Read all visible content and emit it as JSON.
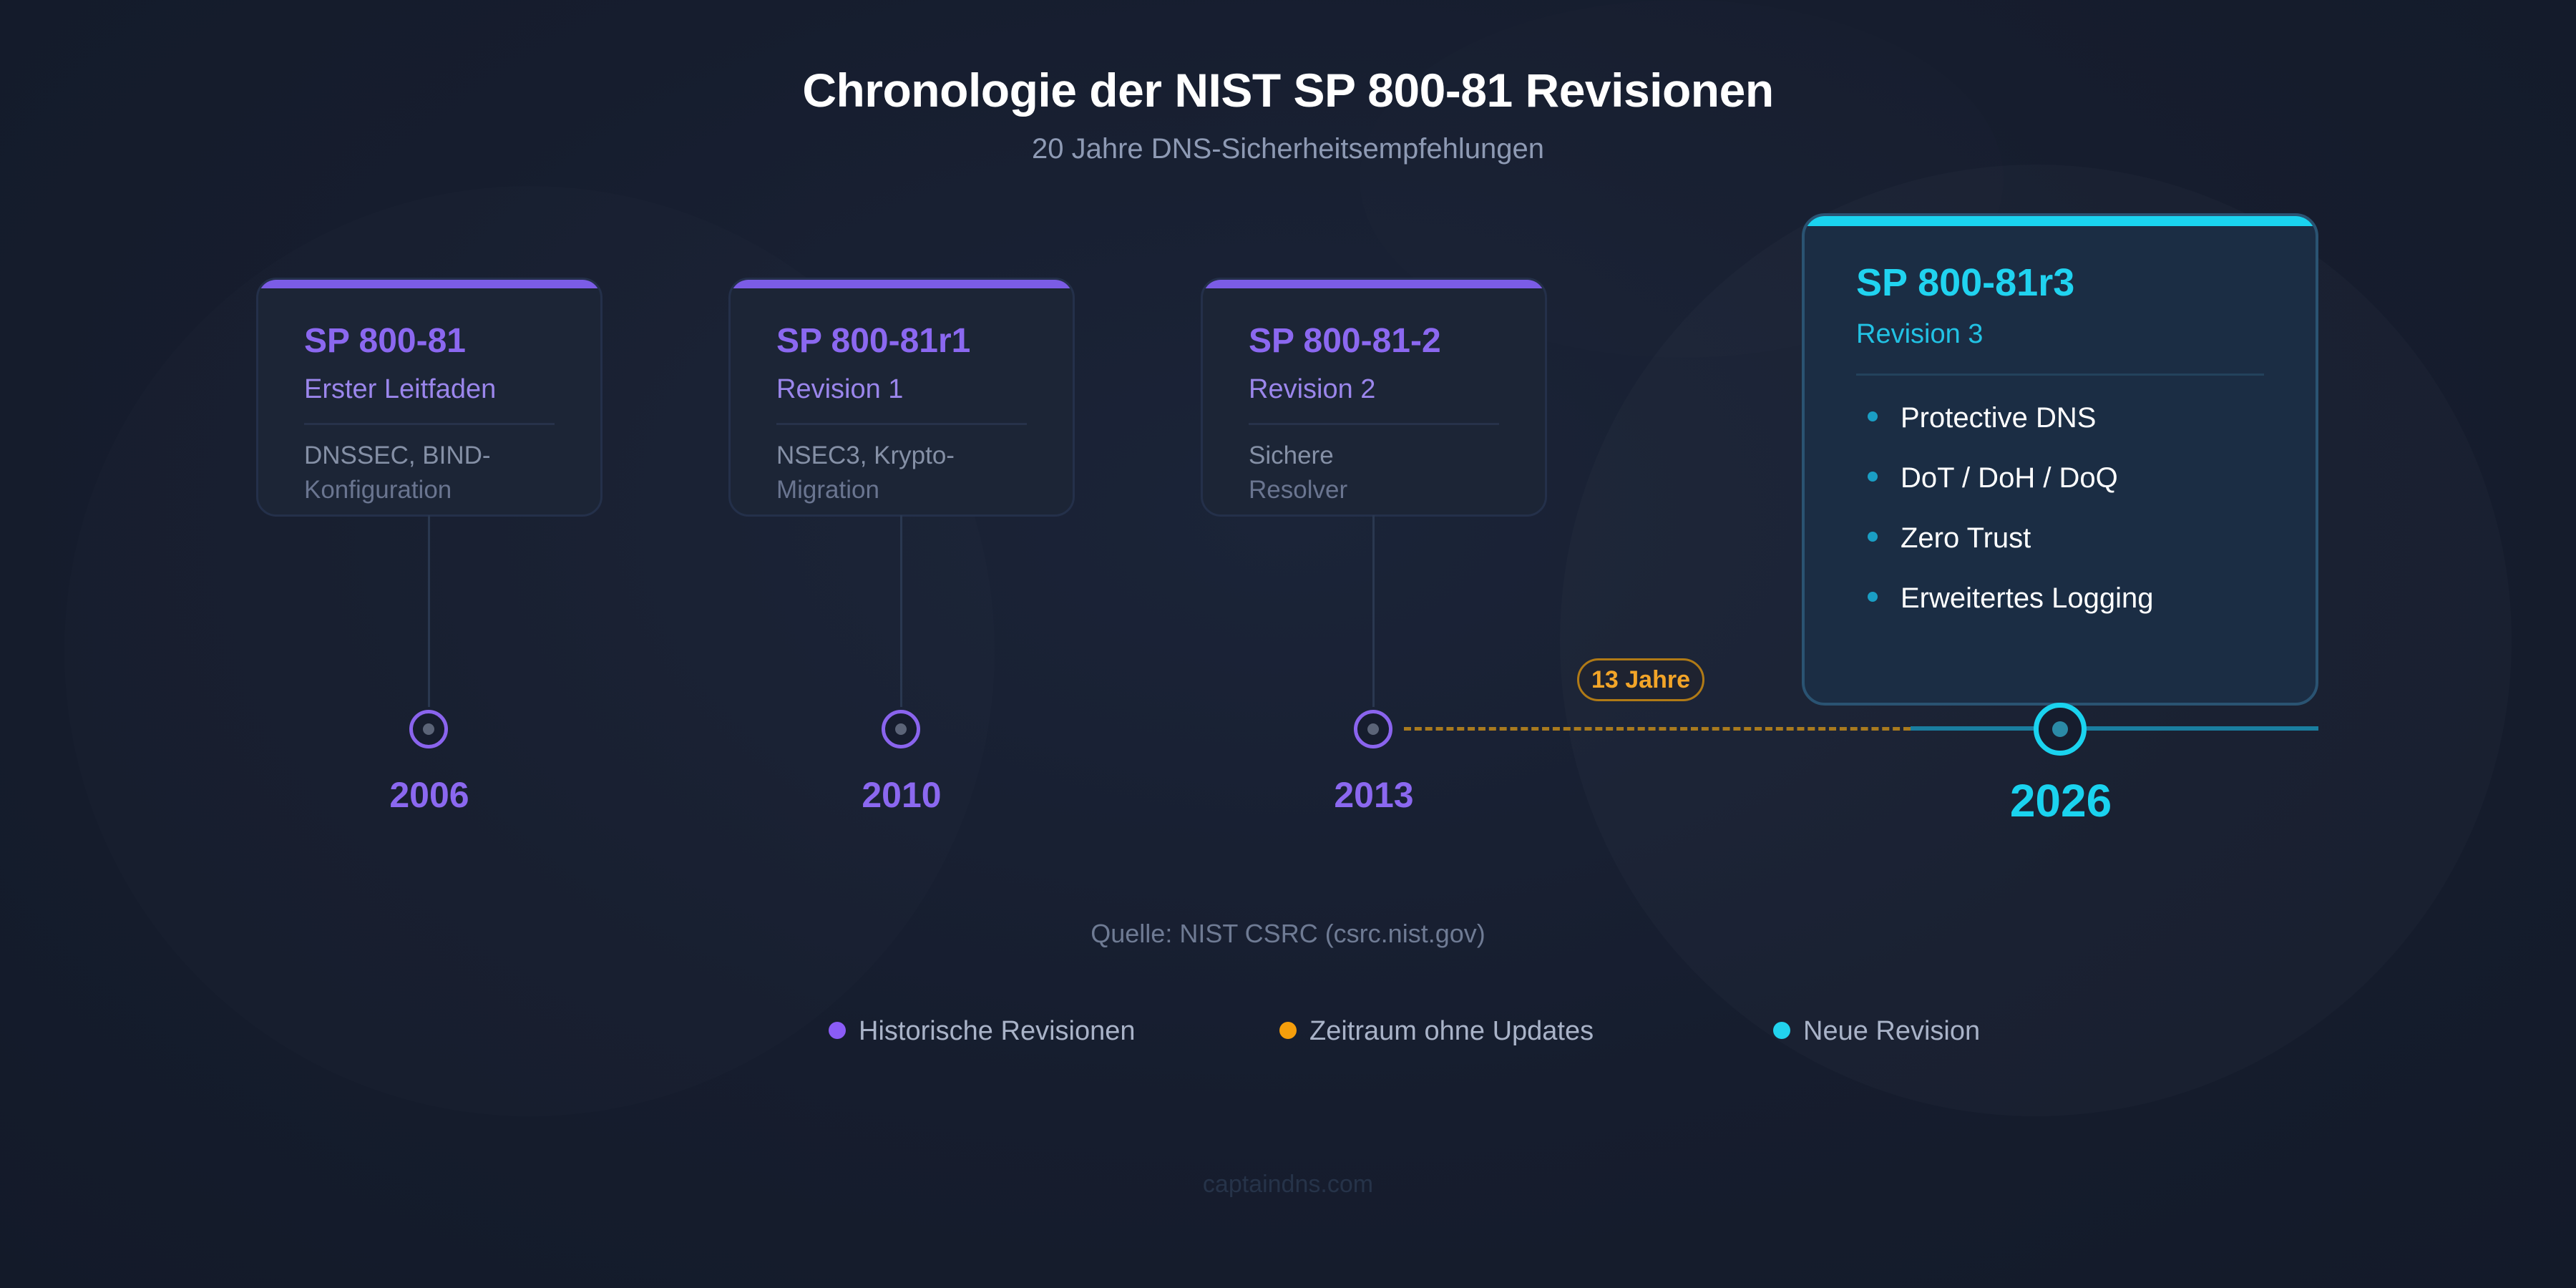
{
  "header": {
    "title": "Chronologie der NIST SP 800-81 Revisionen",
    "subtitle": "20 Jahre DNS-Sicherheitsempfehlungen"
  },
  "revisions": [
    {
      "title": "SP 800-81",
      "subtitle": "Erster Leitfaden",
      "desc_line1": "DNSSEC, BIND-",
      "desc_line2": "Konfiguration",
      "year": "2006"
    },
    {
      "title": "SP 800-81r1",
      "subtitle": "Revision 1",
      "desc_line1": "NSEC3, Krypto-",
      "desc_line2": "Migration",
      "year": "2010"
    },
    {
      "title": "SP 800-81-2",
      "subtitle": "Revision 2",
      "desc_line1": "Sichere",
      "desc_line2": "Resolver",
      "year": "2013"
    }
  ],
  "new_revision": {
    "title": "SP 800-81r3",
    "subtitle": "Revision 3",
    "features": [
      "Protective DNS",
      "DoT / DoH / DoQ",
      "Zero Trust",
      "Erweitertes Logging"
    ],
    "year": "2026"
  },
  "gap_label": "13 Jahre",
  "source": "Quelle: NIST CSRC (csrc.nist.gov)",
  "legend": [
    {
      "label": "Historische Revisionen",
      "color": "#8b5cf6"
    },
    {
      "label": "Zeitraum ohne Updates",
      "color": "#f59e0b"
    },
    {
      "label": "Neue Revision",
      "color": "#22d3ee"
    }
  ],
  "footer": "captaindns.com",
  "colors": {
    "historic": "#8b68f0",
    "gap": "#f3a528",
    "new": "#1ad3ef",
    "background": "#161d2e"
  }
}
